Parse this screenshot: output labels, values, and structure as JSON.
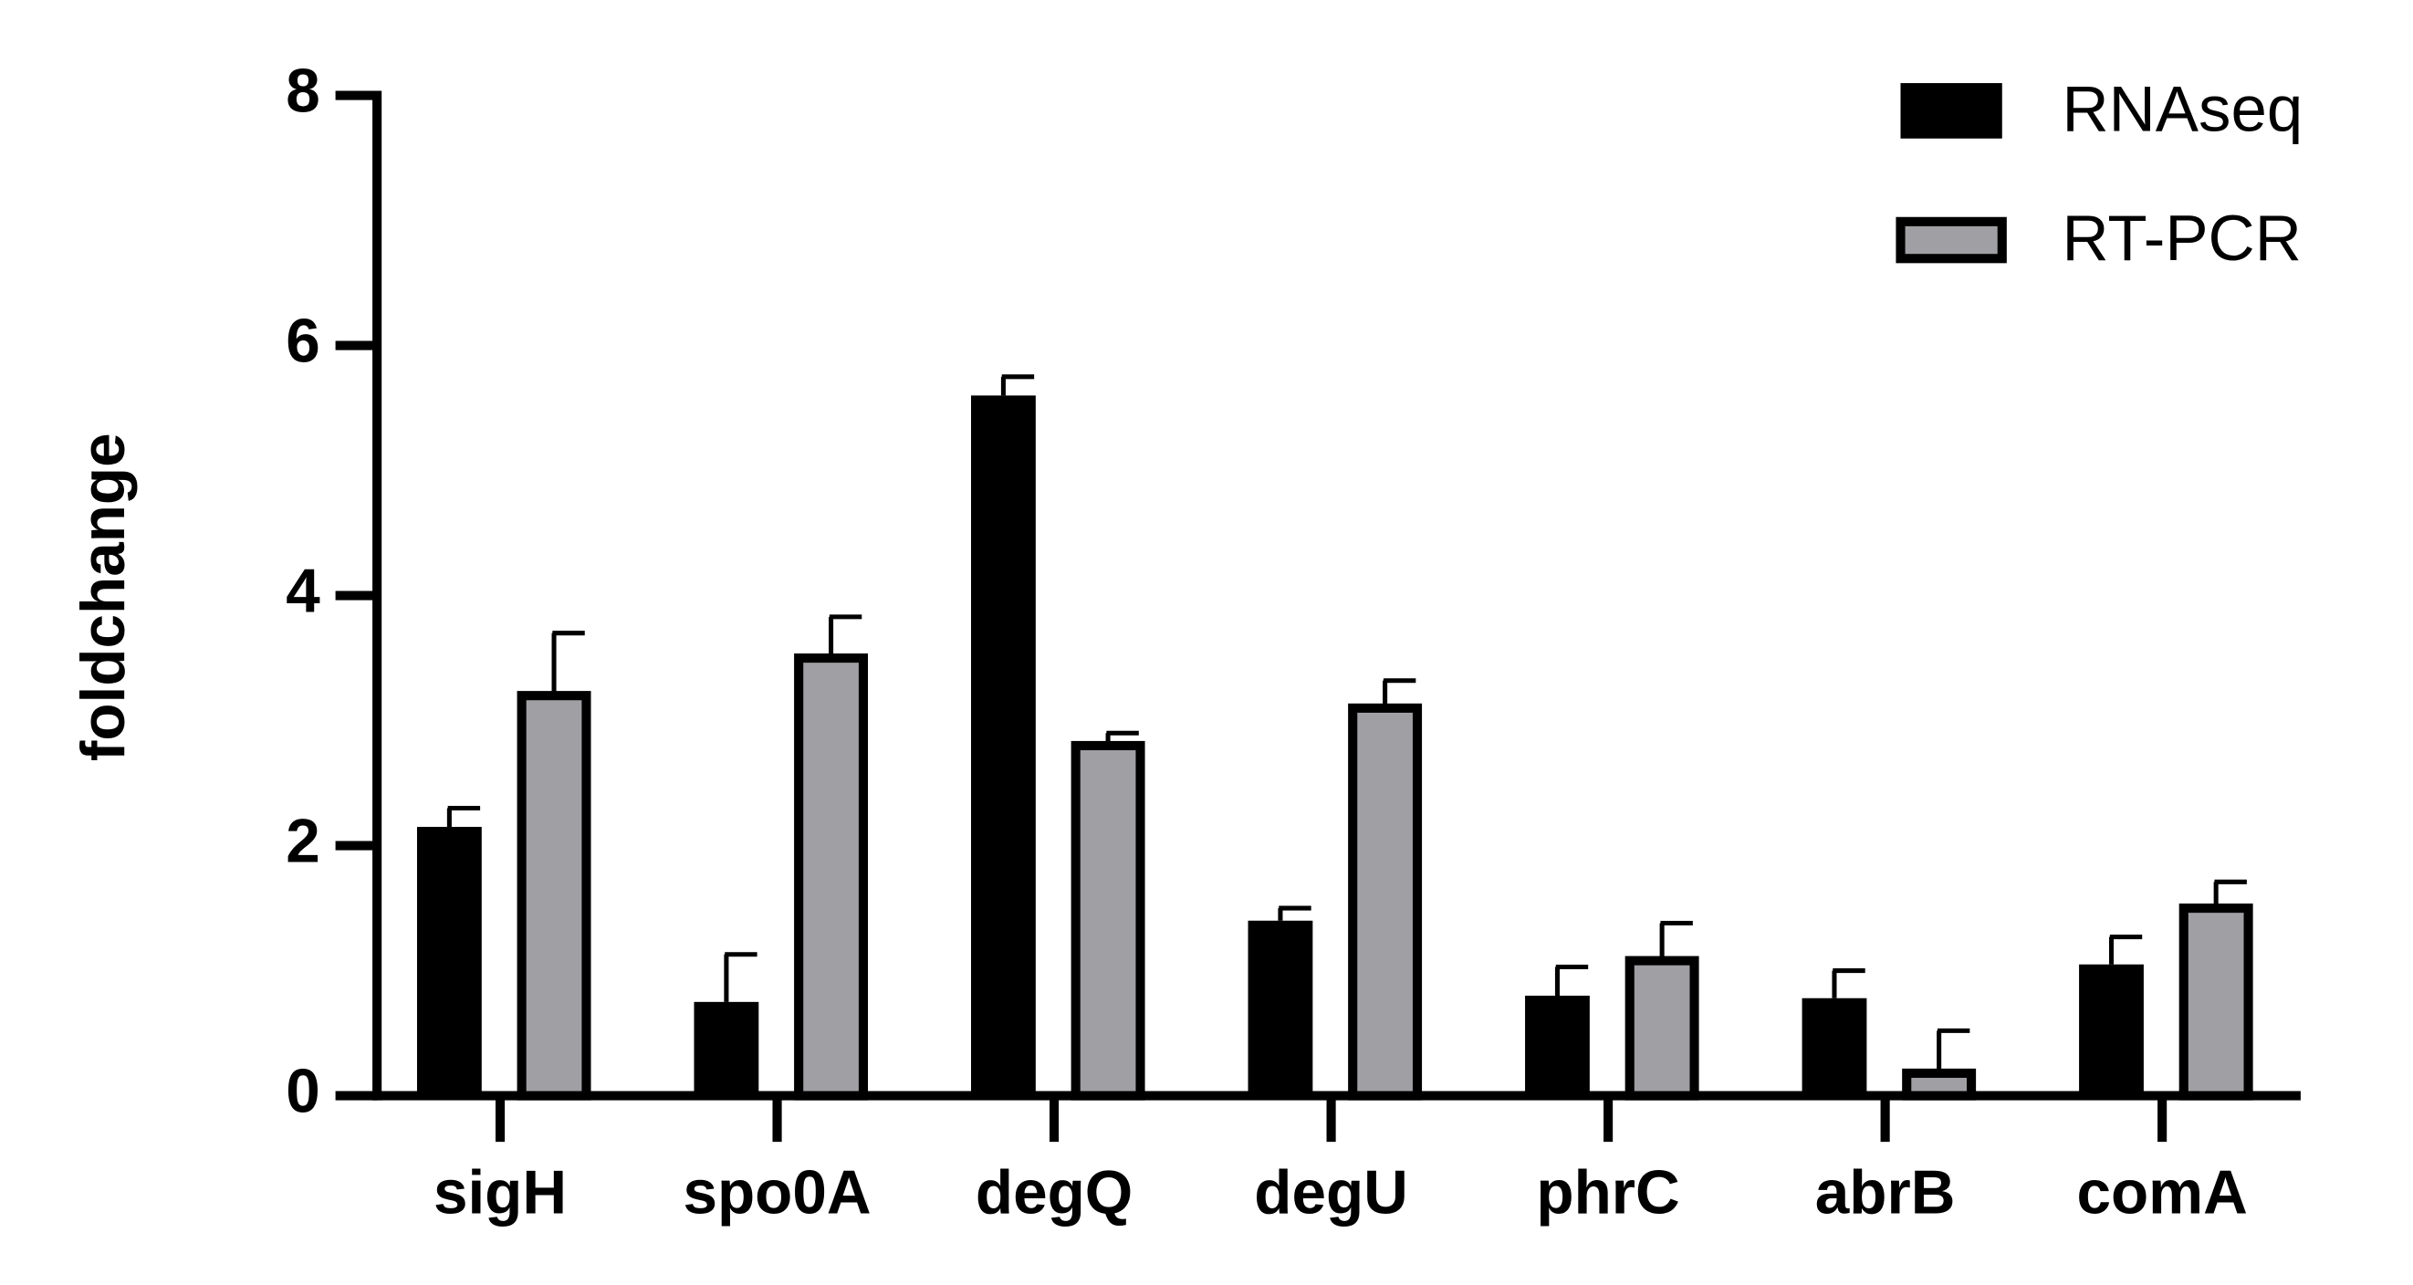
{
  "chart_data": {
    "type": "bar",
    "y_label": "foldchange",
    "categories": [
      "sigH",
      "spo0A",
      "degQ",
      "degU",
      "phrC",
      "abrB",
      "comA"
    ],
    "series": [
      {
        "name": "RNAseq",
        "color": "#000000",
        "values": [
          2.15,
          0.75,
          5.6,
          1.4,
          0.8,
          0.78,
          1.05
        ],
        "errors": [
          0.15,
          0.38,
          0.15,
          0.1,
          0.23,
          0.22,
          0.22
        ]
      },
      {
        "name": "RT-PCR",
        "color": "#a0a0a4",
        "values": [
          3.2,
          3.5,
          2.8,
          3.1,
          1.08,
          0.18,
          1.5
        ],
        "errors": [
          0.5,
          0.33,
          0.1,
          0.22,
          0.3,
          0.34,
          0.21
        ]
      }
    ],
    "ylim": [
      0,
      8
    ],
    "yticks": [
      0,
      2,
      4,
      6,
      8
    ],
    "grid": false,
    "legend": "upper right"
  }
}
